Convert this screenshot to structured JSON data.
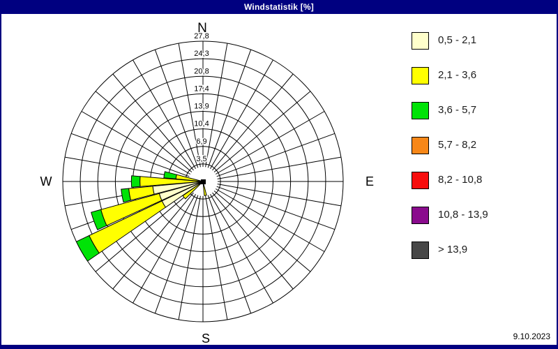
{
  "window": {
    "title": "Windstatistik [%]",
    "date": "9.10.2023"
  },
  "chart_data": {
    "type": "wind-rose-stacked-bar",
    "title": "Windstatistik [%]",
    "units": "%",
    "axis_max": 27.8,
    "rings": 8,
    "ring_labels": [
      "3,5",
      "6,9",
      "10,4",
      "13,9",
      "17,4",
      "20,8",
      "24,3",
      "27,8"
    ],
    "spoke_step_deg": 10,
    "sector_width_deg": 9.2,
    "grid_color": "#000000",
    "compass": {
      "n": "N",
      "e": "E",
      "s": "S",
      "w": "W"
    },
    "speed_bins": [
      {
        "label": "0,5 - 2,1",
        "color": "#FFFFCB"
      },
      {
        "label": "2,1 - 3,6",
        "color": "#FFFF00"
      },
      {
        "label": "3,6 - 5,7",
        "color": "#00E307"
      },
      {
        "label": "5,7 - 8,2",
        "color": "#F78718"
      },
      {
        "label": "8,2 - 10,8",
        "color": "#F70D0D"
      },
      {
        "label": "10,8 - 13,9",
        "color": "#8A0B8D"
      },
      {
        "label": "> 13,9",
        "color": "#474747"
      }
    ],
    "directions": [
      {
        "bearing_deg": 170,
        "values": [
          0,
          2.8,
          0,
          0,
          0,
          0,
          0
        ],
        "total": 2.8
      },
      {
        "bearing_deg": 230,
        "values": [
          0,
          4.9,
          0,
          0,
          0,
          0,
          0
        ],
        "total": 4.9
      },
      {
        "bearing_deg": 240,
        "values": [
          9.0,
          16.0,
          2.8,
          0,
          0,
          0,
          0
        ],
        "total": 27.8
      },
      {
        "bearing_deg": 250,
        "values": [
          9.0,
          12.0,
          2.0,
          0,
          0,
          0,
          0
        ],
        "total": 23.0
      },
      {
        "bearing_deg": 260,
        "values": [
          10.0,
          4.8,
          1.5,
          0,
          0,
          0,
          0
        ],
        "total": 16.3
      },
      {
        "bearing_deg": 270,
        "values": [
          0,
          12.5,
          1.7,
          0,
          0,
          0,
          0
        ],
        "total": 14.2
      },
      {
        "bearing_deg": 280,
        "values": [
          0,
          5.4,
          2.4,
          0,
          0,
          0,
          0
        ],
        "total": 7.8
      }
    ]
  }
}
